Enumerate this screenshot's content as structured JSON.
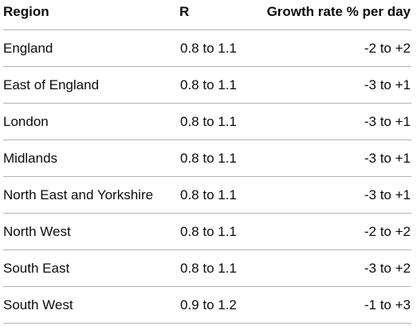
{
  "table": {
    "headers": {
      "region": "Region",
      "r": "R",
      "growth": "Growth rate % per day"
    },
    "rows": [
      {
        "region": "England",
        "r": "0.8 to 1.1",
        "growth": "-2 to +2"
      },
      {
        "region": "East of England",
        "r": "0.8 to 1.1",
        "growth": "-3 to +1"
      },
      {
        "region": "London",
        "r": "0.8 to 1.1",
        "growth": "-3 to +1"
      },
      {
        "region": "Midlands",
        "r": "0.8 to 1.1",
        "growth": "-3 to +1"
      },
      {
        "region": "North East and Yorkshire",
        "r": "0.8 to 1.1",
        "growth": "-3 to +1"
      },
      {
        "region": "North West",
        "r": "0.8 to 1.1",
        "growth": "-2 to +2"
      },
      {
        "region": "South East",
        "r": "0.8 to 1.1",
        "growth": "-3 to +2"
      },
      {
        "region": "South West",
        "r": "0.9 to 1.2",
        "growth": "-1 to +3"
      }
    ]
  }
}
